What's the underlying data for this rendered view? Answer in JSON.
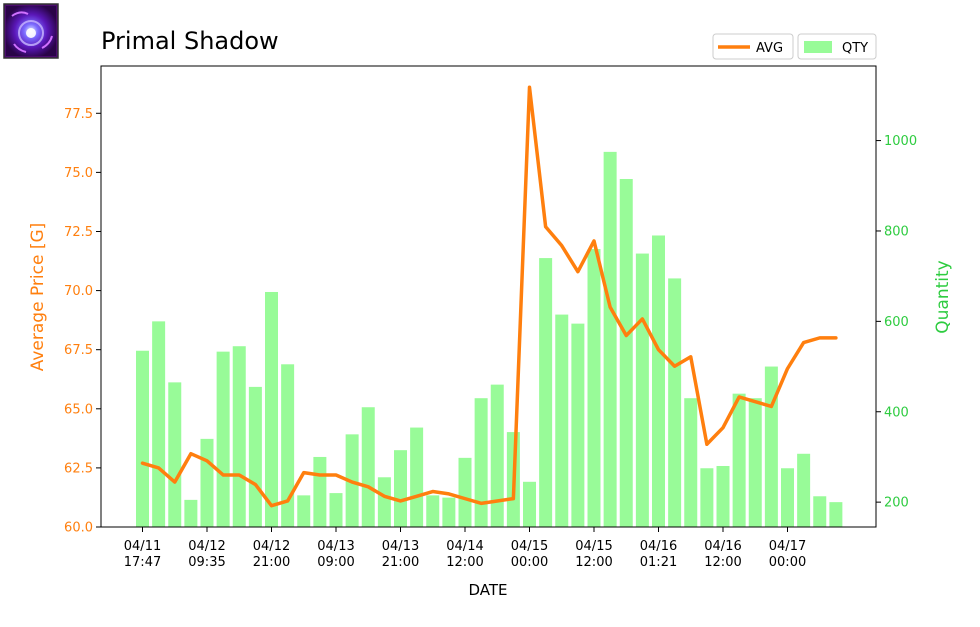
{
  "header": {
    "title": "Primal Shadow",
    "icon": "primal-shadow-orb-icon"
  },
  "colors": {
    "price_line": "#ff7f0e",
    "quantity_bar": "#98fb98",
    "right_axis": "#2ecc40",
    "icon_base": "#4b0a6e"
  },
  "legend": {
    "avg_label": "AVG",
    "qty_label": "QTY"
  },
  "chart_data": {
    "type": "bar+line",
    "title": "Primal Shadow",
    "xlabel": "DATE",
    "ylabel_left": "Average Price [G]",
    "ylabel_right": "Quantity",
    "ylim_left": [
      60.0,
      79.5
    ],
    "ylim_right": [
      145,
      1165
    ],
    "yticks_left": [
      "60.0",
      "62.5",
      "65.0",
      "67.5",
      "70.0",
      "72.5",
      "75.0",
      "77.5"
    ],
    "yticks_right": [
      "200",
      "400",
      "600",
      "800",
      "1000"
    ],
    "x_tick_labels": [
      [
        "04/11",
        "17:47"
      ],
      [
        "04/12",
        "09:35"
      ],
      [
        "04/12",
        "21:00"
      ],
      [
        "04/13",
        "09:00"
      ],
      [
        "04/13",
        "21:00"
      ],
      [
        "04/14",
        "12:00"
      ],
      [
        "04/15",
        "00:00"
      ],
      [
        "04/15",
        "12:00"
      ],
      [
        "04/16",
        "01:21"
      ],
      [
        "04/16",
        "12:00"
      ],
      [
        "04/17",
        "00:00"
      ]
    ],
    "x_tick_index": [
      0,
      4,
      8,
      12,
      16,
      20,
      24,
      28,
      32,
      36,
      40
    ],
    "grid": false,
    "legend_position": "top-right",
    "series": [
      {
        "name": "AVG",
        "kind": "line",
        "axis": "left",
        "values": [
          62.7,
          62.5,
          61.9,
          63.1,
          62.8,
          62.2,
          62.2,
          61.8,
          60.9,
          61.1,
          62.3,
          62.2,
          62.2,
          61.9,
          61.7,
          61.3,
          61.1,
          61.3,
          61.5,
          61.4,
          61.2,
          61.0,
          61.1,
          61.2,
          78.6,
          72.7,
          71.9,
          70.8,
          72.1,
          69.3,
          68.1,
          68.8,
          67.5,
          66.8,
          67.2,
          63.5,
          64.2,
          65.5,
          65.3,
          65.1,
          66.7,
          67.8,
          68.0,
          68.0
        ]
      },
      {
        "name": "QTY",
        "kind": "bar",
        "axis": "right",
        "values": [
          535,
          600,
          465,
          205,
          340,
          533,
          545,
          455,
          665,
          505,
          215,
          300,
          220,
          350,
          410,
          255,
          315,
          365,
          215,
          210,
          298,
          430,
          460,
          355,
          245,
          740,
          615,
          595,
          760,
          975,
          915,
          750,
          790,
          695,
          430,
          275,
          280,
          440,
          430,
          500,
          275,
          307,
          213,
          200
        ]
      }
    ]
  }
}
